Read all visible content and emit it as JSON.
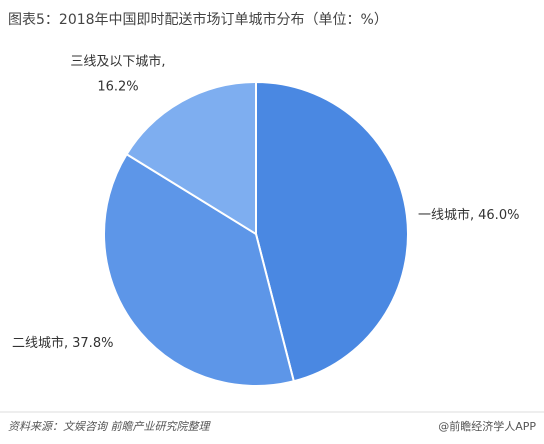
{
  "chart_data": {
    "type": "pie",
    "title": "图表5：2018年中国即时配送市场订单城市分布（单位：%）",
    "categories": [
      "一线城市,",
      "二线城市,",
      "三线及以下城市,"
    ],
    "values": [
      46.0,
      37.8,
      16.2
    ],
    "value_labels": [
      "46.0%",
      "37.8%",
      "16.2%"
    ],
    "colors": [
      "#4a88e2",
      "#5d96e8",
      "#7eaef0"
    ]
  },
  "footer": {
    "source": "资料来源：文娱咨询 前瞻产业研究院整理",
    "brand": "@前瞻经济学人APP"
  }
}
